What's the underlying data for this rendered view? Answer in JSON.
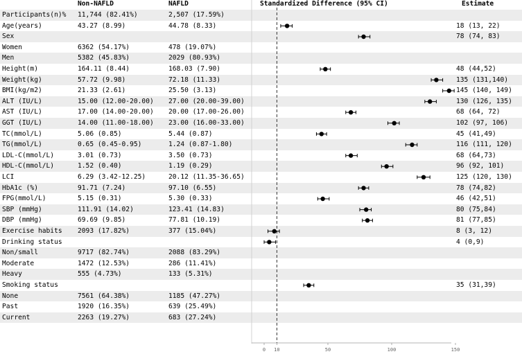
{
  "headers": {
    "non_nafld": "Non-NAFLD",
    "nafld": "NAFLD",
    "plot": "Standardized Difference (95% CI)",
    "estimate": "Estimate"
  },
  "rows": [
    {
      "label": "Participants(n)%",
      "non": "11,744 (82.41%)",
      "naf": "2,507 (17.59%)",
      "est": ""
    },
    {
      "label": "Age(years)",
      "non": "43.27 (8.99)",
      "naf": "44.78 (8.33)",
      "est": "18 (13, 22)"
    },
    {
      "label": "Sex",
      "non": "",
      "naf": "",
      "est": "78 (74, 83)"
    },
    {
      "label": "Women",
      "non": "6362 (54.17%)",
      "naf": "478 (19.07%)",
      "est": ""
    },
    {
      "label": "Men",
      "non": "5382 (45.83%)",
      "naf": "2029 (80.93%)",
      "est": ""
    },
    {
      "label": "Height(m)",
      "non": "164.11 (8.44)",
      "naf": "168.03 (7.90)",
      "est": "48 (44,52)"
    },
    {
      "label": "Weight(kg)",
      "non": "57.72 (9.98)",
      "naf": "72.18 (11.33)",
      "est": "135 (131,140)"
    },
    {
      "label": "BMI(kg/m2)",
      "non": "21.33 (2.61)",
      "naf": "25.50 (3.13)",
      "est": "145 (140, 149)"
    },
    {
      "label": "ALT (IU/L)",
      "non": "15.00 (12.00-20.00)",
      "naf": "27.00 (20.00-39.00)",
      "est": "130 (126, 135)"
    },
    {
      "label": "AST (IU/L)",
      "non": "17.00 (14.00-20.00)",
      "naf": "20.00 (17.00-26.00)",
      "est": "68 (64, 72)"
    },
    {
      "label": "GGT (IU/L)",
      "non": "14.00 (11.00-18.00)",
      "naf": "23.00 (16.00-33.00)",
      "est": "102 (97, 106)"
    },
    {
      "label": "TC(mmol/L)",
      "non": "5.06 (0.85)",
      "naf": "5.44 (0.87)",
      "est": "45 (41,49)"
    },
    {
      "label": "TG(mmol/L)",
      "non": "0.65 (0.45-0.95)",
      "naf": "1.24 (0.87-1.80)",
      "est": "116 (111, 120)"
    },
    {
      "label": "LDL-C(mmol/L)",
      "non": "3.01 (0.73)",
      "naf": "3.50 (0.73)",
      "est": "68 (64,73)"
    },
    {
      "label": "HDL-C(mmol/L)",
      "non": "1.52 (0.40)",
      "naf": "1.19 (0.29)",
      "est": "96 (92, 101)"
    },
    {
      "label": "LCI",
      "non": "6.29 (3.42-12.25)",
      "naf": "20.12 (11.35-36.65)",
      "est": "125 (120, 130)"
    },
    {
      "label": "HbA1c (%)",
      "non": "91.71 (7.24)",
      "naf": "97.10 (6.55)",
      "est": "78 (74,82)"
    },
    {
      "label": "FPG(mmol/L)",
      "non": "5.15 (0.31)",
      "naf": "5.30 (0.33)",
      "est": "46 (42,51)"
    },
    {
      "label": "SBP (mmHg)",
      "non": "111.91 (14.02)",
      "naf": "123.41 (14.83)",
      "est": "80 (75,84)"
    },
    {
      "label": "DBP (mmHg)",
      "non": "69.69 (9.85)",
      "naf": "77.81 (10.19)",
      "est": "81 (77,85)"
    },
    {
      "label": "Exercise habits",
      "non": "2093 (17.82%)",
      "naf": "377 (15.04%)",
      "est": "8 (3, 12)"
    },
    {
      "label": "Drinking status",
      "non": "",
      "naf": "",
      "est": "4 (0,9)"
    },
    {
      "label": "Non/small",
      "non": "9717 (82.74%)",
      "naf": "2088 (83.29%)",
      "est": ""
    },
    {
      "label": "Moderate",
      "non": "1472 (12.53%)",
      "naf": "286 (11.41%)",
      "est": ""
    },
    {
      "label": "Heavy",
      "non": "555 (4.73%)",
      "naf": "133 (5.31%)",
      "est": ""
    },
    {
      "label": "Smoking status",
      "non": "",
      "naf": "",
      "est": "35 (31,39)"
    },
    {
      "label": "None",
      "non": "7561 (64.38%)",
      "naf": "1185 (47.27%)",
      "est": ""
    },
    {
      "label": "Past",
      "non": "1920 (16.35%)",
      "naf": "639 (25.49%)",
      "est": ""
    },
    {
      "label": "Current",
      "non": "2263 (19.27%)",
      "naf": "683 (27.24%)",
      "est": ""
    }
  ],
  "chart_data": {
    "type": "scatter",
    "title": "Standardized Difference (95% CI)",
    "xlim": [
      -10,
      150
    ],
    "x_ticks": [
      "0",
      "10",
      "50",
      "100",
      "150"
    ],
    "reference_line": 10,
    "points": [
      {
        "row": 1,
        "est": 18,
        "lo": 13,
        "hi": 22
      },
      {
        "row": 2,
        "est": 78,
        "lo": 74,
        "hi": 83
      },
      {
        "row": 5,
        "est": 48,
        "lo": 44,
        "hi": 52
      },
      {
        "row": 6,
        "est": 135,
        "lo": 131,
        "hi": 140
      },
      {
        "row": 7,
        "est": 145,
        "lo": 140,
        "hi": 149
      },
      {
        "row": 8,
        "est": 130,
        "lo": 126,
        "hi": 135
      },
      {
        "row": 9,
        "est": 68,
        "lo": 64,
        "hi": 72
      },
      {
        "row": 10,
        "est": 102,
        "lo": 97,
        "hi": 106
      },
      {
        "row": 11,
        "est": 45,
        "lo": 41,
        "hi": 49
      },
      {
        "row": 12,
        "est": 116,
        "lo": 111,
        "hi": 120
      },
      {
        "row": 13,
        "est": 68,
        "lo": 64,
        "hi": 73
      },
      {
        "row": 14,
        "est": 96,
        "lo": 92,
        "hi": 101
      },
      {
        "row": 15,
        "est": 125,
        "lo": 120,
        "hi": 130
      },
      {
        "row": 16,
        "est": 78,
        "lo": 74,
        "hi": 82
      },
      {
        "row": 17,
        "est": 46,
        "lo": 42,
        "hi": 51
      },
      {
        "row": 18,
        "est": 80,
        "lo": 75,
        "hi": 84
      },
      {
        "row": 19,
        "est": 81,
        "lo": 77,
        "hi": 85
      },
      {
        "row": 20,
        "est": 8,
        "lo": 3,
        "hi": 12
      },
      {
        "row": 21,
        "est": 4,
        "lo": 0,
        "hi": 9
      },
      {
        "row": 25,
        "est": 35,
        "lo": 31,
        "hi": 39
      }
    ]
  }
}
